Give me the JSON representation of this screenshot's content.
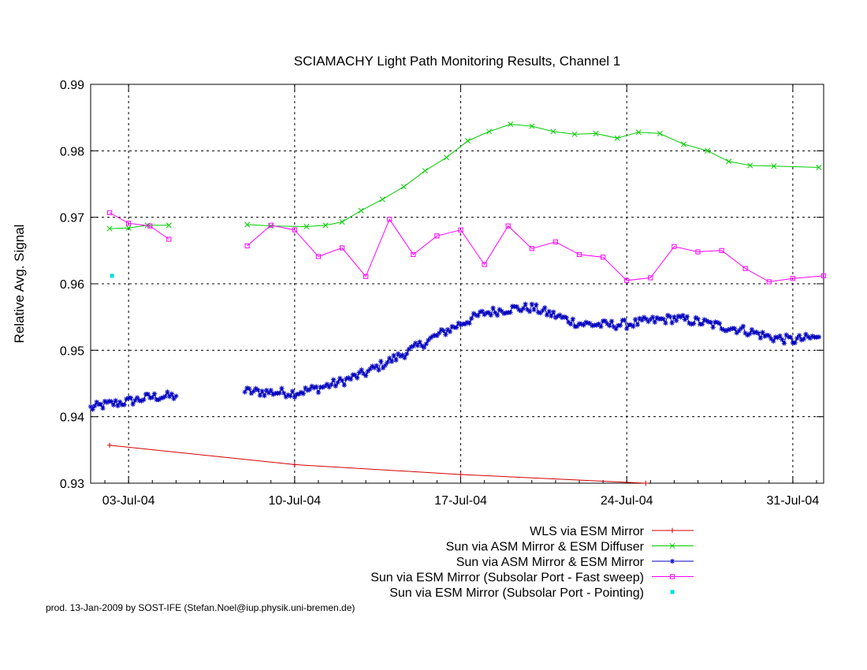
{
  "credit": "prod. 13-Jan-2009 by SOST-IFE (Stefan.Noel@iup.physik.uni-bremen.de)",
  "chart_data": {
    "type": "line",
    "title": "SCIAMACHY Light Path Monitoring Results, Channel 1",
    "xlabel": "",
    "ylabel": "Relative Avg. Signal",
    "x_unit": "date (days, Jul 2004)",
    "xlim": [
      1.4,
      32.3
    ],
    "ylim": [
      0.93,
      0.99
    ],
    "x_ticks": [
      {
        "value": 3.0,
        "label": "03-Jul-04"
      },
      {
        "value": 10.0,
        "label": "10-Jul-04"
      },
      {
        "value": 17.0,
        "label": "17-Jul-04"
      },
      {
        "value": 24.0,
        "label": "24-Jul-04"
      },
      {
        "value": 31.0,
        "label": "31-Jul-04"
      }
    ],
    "y_ticks": [
      0.93,
      0.94,
      0.95,
      0.96,
      0.97,
      0.98,
      0.99
    ],
    "grid": true,
    "legend_position": "below-right",
    "series": [
      {
        "name": "WLS via ESM Mirror",
        "color": "#d40000",
        "marker": "plus",
        "points": [
          [
            2.2,
            0.9357
          ],
          [
            10.0,
            0.9328
          ],
          [
            17.0,
            0.9313
          ],
          [
            24.8,
            0.93
          ]
        ]
      },
      {
        "name": "Sun via ASM Mirror & ESM Diffuser",
        "color": "#00cc00",
        "marker": "cross",
        "points": [
          [
            [
              2.2,
              0.9683
            ],
            [
              3.0,
              0.9684
            ],
            [
              3.8,
              0.9688
            ],
            [
              4.7,
              0.9688
            ]
          ],
          [
            [
              8.0,
              0.9689
            ],
            [
              9.0,
              0.9687
            ],
            [
              10.5,
              0.9686
            ],
            [
              11.3,
              0.9688
            ],
            [
              12.0,
              0.9693
            ],
            [
              12.8,
              0.971
            ],
            [
              13.7,
              0.9727
            ],
            [
              14.6,
              0.9746
            ],
            [
              15.5,
              0.977
            ],
            [
              16.4,
              0.979
            ],
            [
              17.3,
              0.9815
            ],
            [
              18.2,
              0.9829
            ],
            [
              19.1,
              0.984
            ],
            [
              20.0,
              0.9837
            ],
            [
              20.9,
              0.9829
            ],
            [
              21.8,
              0.9825
            ],
            [
              22.7,
              0.9826
            ],
            [
              23.6,
              0.9819
            ],
            [
              24.5,
              0.9828
            ],
            [
              25.4,
              0.9826
            ],
            [
              26.4,
              0.981
            ],
            [
              27.4,
              0.98
            ],
            [
              28.3,
              0.9784
            ],
            [
              29.2,
              0.9778
            ],
            [
              30.2,
              0.9777
            ],
            [
              32.1,
              0.9775
            ]
          ]
        ]
      },
      {
        "name": "Sun via ASM Mirror & ESM Mirror",
        "color": "#0000c0",
        "marker": "star",
        "anchors": [
          [
            [
              1.4,
              0.9413
            ],
            [
              2.0,
              0.9418
            ],
            [
              3.0,
              0.9423
            ],
            [
              4.0,
              0.943
            ],
            [
              5.0,
              0.9431
            ]
          ],
          [
            [
              7.9,
              0.9438
            ],
            [
              9.0,
              0.9437
            ],
            [
              10.0,
              0.9436
            ],
            [
              11.0,
              0.9443
            ],
            [
              12.0,
              0.9453
            ],
            [
              13.0,
              0.9466
            ],
            [
              14.0,
              0.9484
            ],
            [
              15.0,
              0.9502
            ],
            [
              16.0,
              0.9522
            ],
            [
              17.0,
              0.954
            ],
            [
              18.0,
              0.9556
            ],
            [
              19.0,
              0.9562
            ],
            [
              20.0,
              0.9564
            ],
            [
              21.0,
              0.9552
            ],
            [
              22.0,
              0.954
            ],
            [
              23.0,
              0.9538
            ],
            [
              24.0,
              0.9539
            ],
            [
              25.0,
              0.9544
            ],
            [
              26.0,
              0.9548
            ],
            [
              27.0,
              0.9543
            ],
            [
              28.0,
              0.9536
            ],
            [
              29.0,
              0.953
            ],
            [
              30.0,
              0.952
            ],
            [
              31.0,
              0.9515
            ],
            [
              32.1,
              0.952
            ]
          ]
        ],
        "noise_amplitude": 0.0007
      },
      {
        "name": "Sun via ESM Mirror (Subsolar Port - Fast sweep)",
        "color": "#ff00ff",
        "marker": "open-square",
        "points": [
          [
            [
              2.2,
              0.9707
            ],
            [
              3.0,
              0.9691
            ],
            [
              3.9,
              0.9687
            ],
            [
              4.7,
              0.9667
            ]
          ],
          [
            [
              8.0,
              0.9657
            ],
            [
              9.0,
              0.9688
            ],
            [
              10.0,
              0.9681
            ],
            [
              11.0,
              0.9641
            ],
            [
              12.0,
              0.9654
            ],
            [
              13.0,
              0.9611
            ],
            [
              14.0,
              0.9697
            ],
            [
              15.0,
              0.9644
            ],
            [
              16.0,
              0.9672
            ],
            [
              17.0,
              0.9681
            ],
            [
              18.0,
              0.9629
            ],
            [
              19.0,
              0.9687
            ],
            [
              20.0,
              0.9653
            ],
            [
              21.0,
              0.9663
            ],
            [
              22.0,
              0.9644
            ],
            [
              23.0,
              0.964
            ],
            [
              24.0,
              0.9605
            ],
            [
              25.0,
              0.9609
            ],
            [
              26.0,
              0.9656
            ],
            [
              27.0,
              0.9648
            ],
            [
              28.0,
              0.965
            ],
            [
              29.0,
              0.9623
            ],
            [
              30.0,
              0.9603
            ],
            [
              31.0,
              0.9608
            ],
            [
              32.3,
              0.9612
            ]
          ]
        ]
      },
      {
        "name": "Sun via ESM Mirror (Subsolar Port - Pointing)",
        "color": "#00dddd",
        "marker": "filled-square",
        "points": [
          [
            2.3,
            0.9612
          ]
        ]
      }
    ]
  }
}
